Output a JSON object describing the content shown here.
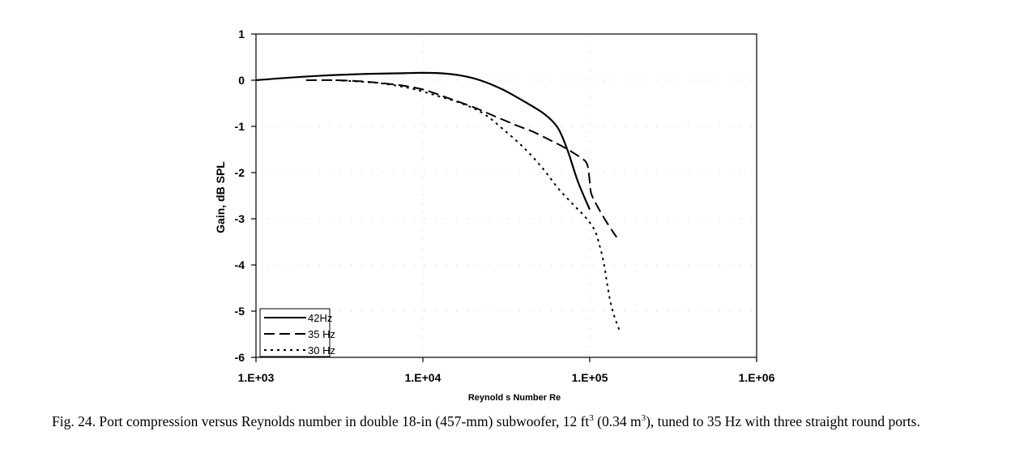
{
  "chart_data": {
    "type": "line",
    "xscale": "log",
    "xlim": [
      1000,
      1000000
    ],
    "ylim": [
      -6,
      1
    ],
    "xlabel": "Reynold s Number Re",
    "ylabel": "Gain, dB SPL",
    "xticks": [
      "1.E+03",
      "1.E+04",
      "1.E+05",
      "1.E+06"
    ],
    "yticks": [
      "1",
      "0",
      "-1",
      "-2",
      "-3",
      "-4",
      "-5",
      "-6"
    ],
    "legend_position": "bottom-left",
    "series": [
      {
        "name": "42Hz",
        "style": "solid",
        "points": [
          [
            1000,
            0.0
          ],
          [
            1500,
            0.05
          ],
          [
            2500,
            0.1
          ],
          [
            4000,
            0.13
          ],
          [
            7000,
            0.15
          ],
          [
            10000,
            0.16
          ],
          [
            13000,
            0.15
          ],
          [
            17000,
            0.1
          ],
          [
            22000,
            0.0
          ],
          [
            30000,
            -0.2
          ],
          [
            40000,
            -0.45
          ],
          [
            52000,
            -0.7
          ],
          [
            62000,
            -0.95
          ],
          [
            68000,
            -1.2
          ],
          [
            75000,
            -1.6
          ],
          [
            85000,
            -2.2
          ],
          [
            100000,
            -2.8
          ]
        ]
      },
      {
        "name": "35 Hz",
        "style": "dashed",
        "points": [
          [
            2000,
            0.0
          ],
          [
            3000,
            0.0
          ],
          [
            4500,
            -0.03
          ],
          [
            7000,
            -0.1
          ],
          [
            10000,
            -0.2
          ],
          [
            14000,
            -0.38
          ],
          [
            20000,
            -0.58
          ],
          [
            27000,
            -0.78
          ],
          [
            36000,
            -0.97
          ],
          [
            46000,
            -1.12
          ],
          [
            58000,
            -1.3
          ],
          [
            70000,
            -1.45
          ],
          [
            82000,
            -1.6
          ],
          [
            92000,
            -1.72
          ],
          [
            97000,
            -1.85
          ],
          [
            100000,
            -2.2
          ],
          [
            102000,
            -2.45
          ],
          [
            110000,
            -2.7
          ],
          [
            125000,
            -3.05
          ],
          [
            145000,
            -3.4
          ]
        ]
      },
      {
        "name": "30 Hz",
        "style": "dotted",
        "points": [
          [
            3000,
            0.0
          ],
          [
            5000,
            -0.05
          ],
          [
            7000,
            -0.12
          ],
          [
            9000,
            -0.2
          ],
          [
            12000,
            -0.33
          ],
          [
            17000,
            -0.5
          ],
          [
            23000,
            -0.72
          ],
          [
            30000,
            -1.05
          ],
          [
            40000,
            -1.45
          ],
          [
            52000,
            -1.9
          ],
          [
            65000,
            -2.35
          ],
          [
            80000,
            -2.7
          ],
          [
            95000,
            -2.98
          ],
          [
            107000,
            -3.25
          ],
          [
            115000,
            -3.6
          ],
          [
            122000,
            -4.0
          ],
          [
            127000,
            -4.4
          ],
          [
            133000,
            -4.8
          ],
          [
            140000,
            -5.1
          ],
          [
            150000,
            -5.4
          ]
        ]
      }
    ]
  },
  "caption": {
    "lead": "Fig. 24. Port compression versus Reynolds number in double 18-in (457-mm) subwoofer, 12 ft",
    "sup1": "3",
    "mid": " (0.34 m",
    "sup2": "3",
    "tail": "), tuned to 35 Hz with three straight round ports."
  }
}
